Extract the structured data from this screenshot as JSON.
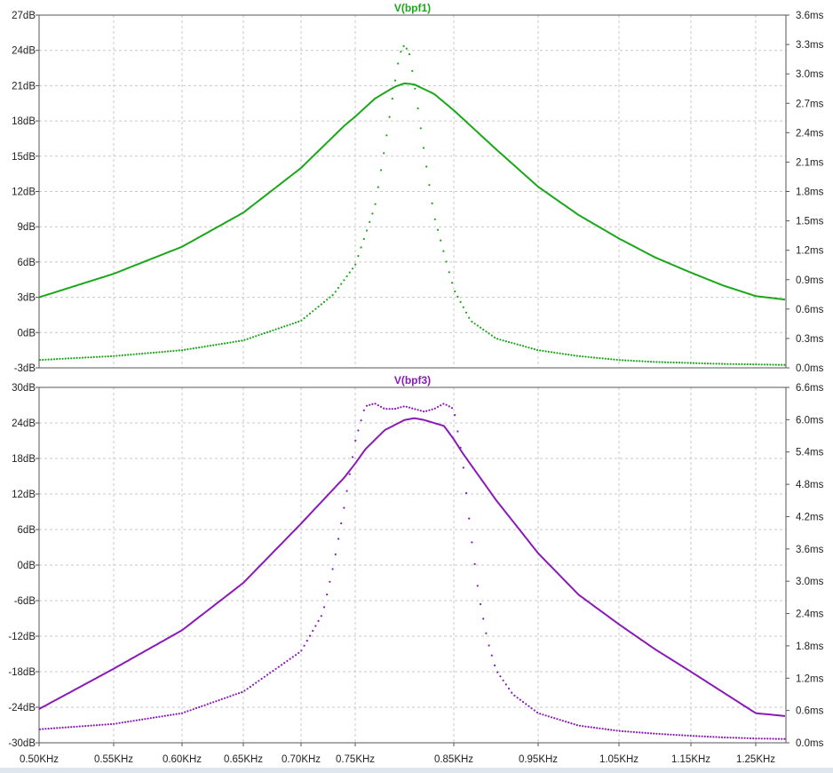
{
  "chart_data": [
    {
      "type": "line",
      "title": "V(bpf1)",
      "color": "#1aa71a",
      "x_unit": "KHz",
      "xlim": [
        0.5,
        1.3
      ],
      "left_axis": {
        "ylim": [
          -3,
          27
        ],
        "ticks": [
          "-3dB",
          "0dB",
          "3dB",
          "6dB",
          "9dB",
          "12dB",
          "15dB",
          "18dB",
          "21dB",
          "24dB",
          "27dB"
        ],
        "tick_values": [
          -3,
          0,
          3,
          6,
          9,
          12,
          15,
          18,
          21,
          24,
          27
        ]
      },
      "right_axis": {
        "ylim": [
          0.0,
          3.6
        ],
        "ticks": [
          "0.0ms",
          "0.3ms",
          "0.6ms",
          "0.9ms",
          "1.2ms",
          "1.5ms",
          "1.8ms",
          "2.1ms",
          "2.4ms",
          "2.7ms",
          "3.0ms",
          "3.3ms",
          "3.6ms"
        ],
        "tick_values": [
          0,
          0.3,
          0.6,
          0.9,
          1.2,
          1.5,
          1.8,
          2.1,
          2.4,
          2.7,
          3.0,
          3.3,
          3.6
        ]
      },
      "series": [
        {
          "style": "solid",
          "axis": "left",
          "x": [
            0.5,
            0.55,
            0.6,
            0.65,
            0.7,
            0.74,
            0.77,
            0.79,
            0.8,
            0.81,
            0.83,
            0.85,
            0.9,
            0.95,
            1.0,
            1.05,
            1.1,
            1.15,
            1.2,
            1.25,
            1.3
          ],
          "y": [
            3.0,
            5.0,
            7.3,
            10.2,
            14.0,
            17.6,
            19.9,
            20.9,
            21.2,
            21.1,
            20.3,
            18.9,
            15.6,
            12.4,
            10.0,
            8.0,
            6.4,
            5.1,
            4.0,
            3.1,
            2.8
          ]
        },
        {
          "style": "dotted",
          "axis": "right",
          "x": [
            0.5,
            0.55,
            0.6,
            0.65,
            0.7,
            0.73,
            0.75,
            0.77,
            0.78,
            0.79,
            0.795,
            0.8,
            0.805,
            0.81,
            0.82,
            0.83,
            0.85,
            0.87,
            0.9,
            0.95,
            1.0,
            1.05,
            1.1,
            1.15,
            1.2,
            1.25,
            1.3
          ],
          "y": [
            0.08,
            0.12,
            0.18,
            0.28,
            0.48,
            0.75,
            1.05,
            1.65,
            2.25,
            2.9,
            3.2,
            3.3,
            3.2,
            2.9,
            2.2,
            1.55,
            0.8,
            0.48,
            0.3,
            0.18,
            0.12,
            0.08,
            0.06,
            0.05,
            0.04,
            0.035,
            0.03
          ]
        }
      ]
    },
    {
      "type": "line",
      "title": "V(bpf3)",
      "color": "#8a1ab8",
      "x_unit": "KHz",
      "xlim": [
        0.5,
        1.3
      ],
      "left_axis": {
        "ylim": [
          -30,
          30
        ],
        "ticks": [
          "-30dB",
          "-24dB",
          "-18dB",
          "-12dB",
          "-6dB",
          "0dB",
          "6dB",
          "12dB",
          "18dB",
          "24dB",
          "30dB"
        ],
        "tick_values": [
          -30,
          -24,
          -18,
          -12,
          -6,
          0,
          6,
          12,
          18,
          24,
          30
        ]
      },
      "right_axis": {
        "ylim": [
          0.0,
          6.6
        ],
        "ticks": [
          "0.0ms",
          "0.6ms",
          "1.2ms",
          "1.8ms",
          "2.4ms",
          "3.0ms",
          "3.6ms",
          "4.2ms",
          "4.8ms",
          "5.4ms",
          "6.0ms",
          "6.6ms"
        ],
        "tick_values": [
          0,
          0.6,
          1.2,
          1.8,
          2.4,
          3.0,
          3.6,
          4.2,
          4.8,
          5.4,
          6.0,
          6.6
        ]
      },
      "series": [
        {
          "style": "solid",
          "axis": "left",
          "x": [
            0.5,
            0.55,
            0.6,
            0.65,
            0.7,
            0.74,
            0.76,
            0.78,
            0.8,
            0.81,
            0.82,
            0.84,
            0.86,
            0.9,
            0.95,
            1.0,
            1.05,
            1.1,
            1.15,
            1.2,
            1.25,
            1.3
          ],
          "y": [
            -24.3,
            -17.5,
            -11.0,
            -3.0,
            7.0,
            14.8,
            19.5,
            22.8,
            24.5,
            24.8,
            24.5,
            23.5,
            19.0,
            11.0,
            2.0,
            -5.0,
            -10.0,
            -14.2,
            -18.0,
            -21.5,
            -25.0,
            -25.5
          ]
        },
        {
          "style": "dotted",
          "axis": "right",
          "x": [
            0.5,
            0.55,
            0.6,
            0.65,
            0.7,
            0.72,
            0.73,
            0.74,
            0.75,
            0.76,
            0.77,
            0.78,
            0.79,
            0.8,
            0.81,
            0.82,
            0.83,
            0.84,
            0.85,
            0.86,
            0.87,
            0.88,
            0.89,
            0.9,
            0.92,
            0.95,
            1.0,
            1.05,
            1.1,
            1.15,
            1.2,
            1.25,
            1.3
          ],
          "y": [
            0.25,
            0.35,
            0.55,
            0.95,
            1.7,
            2.4,
            3.3,
            4.4,
            5.6,
            6.25,
            6.3,
            6.2,
            6.2,
            6.25,
            6.2,
            6.15,
            6.2,
            6.3,
            6.2,
            5.3,
            3.9,
            2.7,
            1.9,
            1.35,
            0.9,
            0.55,
            0.32,
            0.22,
            0.17,
            0.13,
            0.1,
            0.08,
            0.07
          ]
        }
      ]
    }
  ],
  "x_axis": {
    "ticks": [
      "0.50KHz",
      "0.55KHz",
      "0.60KHz",
      "0.65KHz",
      "0.70KHz",
      "0.75KHz",
      "0.85KHz",
      "0.95KHz",
      "1.05KHz",
      "1.15KHz",
      "1.25KHz"
    ]
  }
}
